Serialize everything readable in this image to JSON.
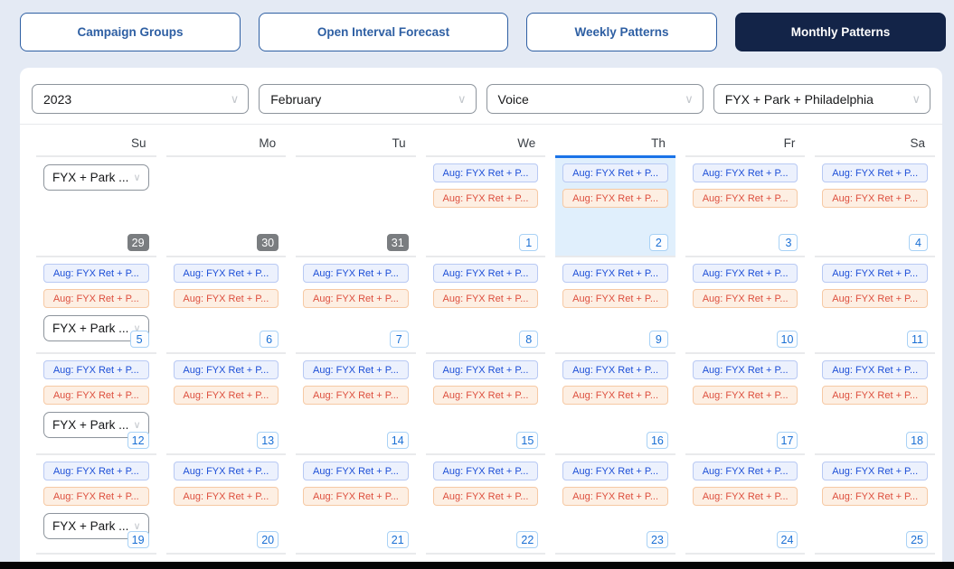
{
  "tabs": {
    "items": [
      {
        "label": "Campaign Groups",
        "active": false
      },
      {
        "label": "Open Interval Forecast",
        "active": false
      },
      {
        "label": "Weekly Patterns",
        "active": false
      },
      {
        "label": "Monthly Patterns",
        "active": true
      }
    ]
  },
  "filters": {
    "year": "2023",
    "month": "February",
    "channel": "Voice",
    "group": "FYX + Park + Philadelphia",
    "chevron": "∨"
  },
  "calendar": {
    "day_headers": [
      "Su",
      "Mo",
      "Tu",
      "We",
      "Th",
      "Fr",
      "Sa"
    ],
    "cell_dropdown_label": "FYX + Park ...",
    "chip_blue_label": "Aug: FYX Ret + P...",
    "chip_orange_label": "Aug: FYX Ret + P...",
    "weeks": [
      {
        "days": [
          {
            "date": "29",
            "outside_month": true,
            "has_chips": false,
            "has_dropdown": true
          },
          {
            "date": "30",
            "outside_month": true,
            "has_chips": false
          },
          {
            "date": "31",
            "outside_month": true,
            "has_chips": false
          },
          {
            "date": "1",
            "has_chips": true
          },
          {
            "date": "2",
            "has_chips": true,
            "is_today": true
          },
          {
            "date": "3",
            "has_chips": true
          },
          {
            "date": "4",
            "has_chips": true
          }
        ]
      },
      {
        "days": [
          {
            "date": "5",
            "has_chips": true,
            "has_dropdown": true
          },
          {
            "date": "6",
            "has_chips": true
          },
          {
            "date": "7",
            "has_chips": true
          },
          {
            "date": "8",
            "has_chips": true
          },
          {
            "date": "9",
            "has_chips": true
          },
          {
            "date": "10",
            "has_chips": true
          },
          {
            "date": "11",
            "has_chips": true
          }
        ]
      },
      {
        "days": [
          {
            "date": "12",
            "has_chips": true,
            "has_dropdown": true
          },
          {
            "date": "13",
            "has_chips": true
          },
          {
            "date": "14",
            "has_chips": true
          },
          {
            "date": "15",
            "has_chips": true
          },
          {
            "date": "16",
            "has_chips": true
          },
          {
            "date": "17",
            "has_chips": true
          },
          {
            "date": "18",
            "has_chips": true
          }
        ]
      },
      {
        "days": [
          {
            "date": "19",
            "has_chips": true,
            "has_dropdown": true
          },
          {
            "date": "20",
            "has_chips": true
          },
          {
            "date": "21",
            "has_chips": true
          },
          {
            "date": "22",
            "has_chips": true
          },
          {
            "date": "23",
            "has_chips": true
          },
          {
            "date": "24",
            "has_chips": true
          },
          {
            "date": "25",
            "has_chips": true
          }
        ]
      },
      {
        "partial": true,
        "days": [
          {},
          {},
          {},
          {},
          {},
          {},
          {}
        ]
      }
    ]
  },
  "colors": {
    "page_bg": "#e4eaf4",
    "active_tab_bg": "#132448",
    "tab_accent": "#2e5fa3",
    "today_border": "#1a73e8",
    "today_bg": "#e0effc",
    "chip_blue_text": "#1d4fd7",
    "chip_orange_text": "#dd4f3e",
    "outside_badge_bg": "#7a7d80",
    "date_badge_text": "#1a6fd4"
  }
}
